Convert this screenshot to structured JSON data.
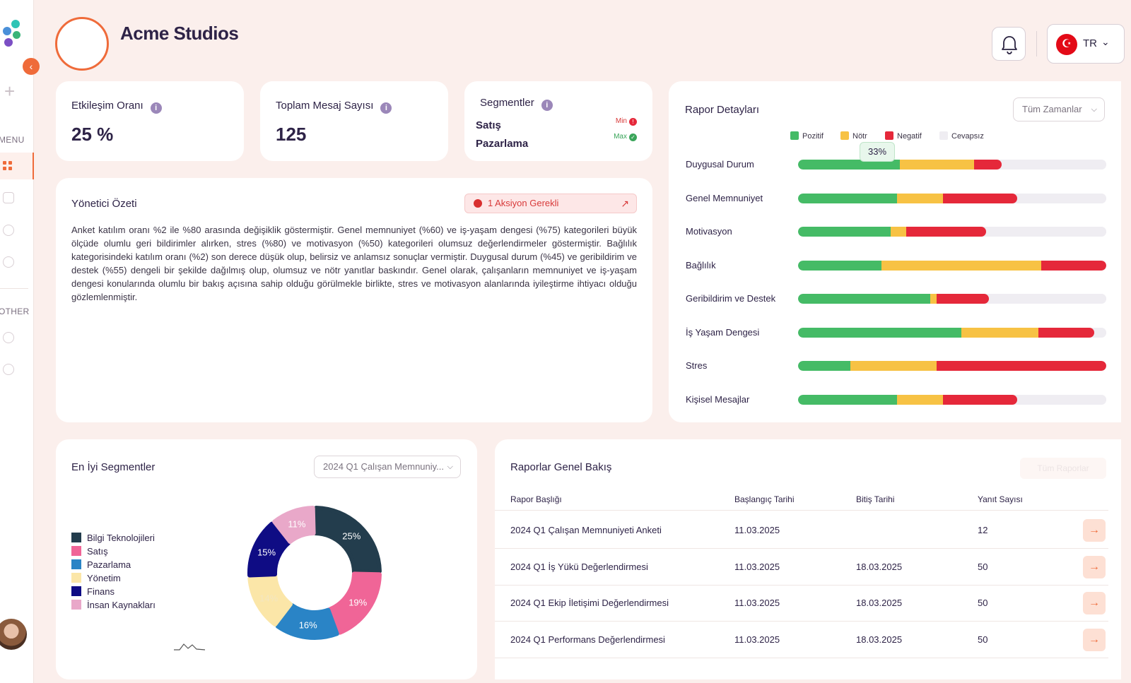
{
  "sidebar": {
    "menu_label": "MENU",
    "other_label": "OTHER"
  },
  "header": {
    "company_name": "Acme Studios",
    "language": "TR",
    "flag_symbol": "☪"
  },
  "kpis": {
    "engagement": {
      "title": "Etkileşim Oranı",
      "value": "25 %"
    },
    "messages": {
      "title": "Toplam Mesaj Sayısı",
      "value": "125"
    },
    "segments": {
      "title": "Segmentler",
      "min_label": "Min",
      "max_label": "Max",
      "min_segment": "Satış",
      "max_segment": "Pazarlama"
    }
  },
  "summary": {
    "title": "Yönetici Özeti",
    "action": "1 Aksiyon Gerekli",
    "text": "Anket katılım oranı %2 ile %80 arasında değişiklik göstermiştir. Genel memnuniyet (%60) ve iş-yaşam dengesi (%75) kategorileri büyük ölçüde olumlu geri bildirimler alırken, stres (%80) ve motivasyon (%50) kategorileri olumsuz değerlendirmeler göstermiştir. Bağlılık kategorisindeki katılım oranı (%2) son derece düşük olup, belirsiz ve anlamsız sonuçlar vermiştir. Duygusal durum (%45) ve geribildirim ve destek (%55) dengeli bir şekilde dağılmış olup, olumsuz ve nötr yanıtlar baskındır. Genel olarak, çalışanların memnuniyet ve iş-yaşam dengesi konularında olumlu bir bakış açısına sahip olduğu görülmekle birlikte, stres ve motivasyon alanlarında iyileştirme ihtiyacı olduğu gözlemlenmiştir."
  },
  "report_details": {
    "title": "Rapor Detayları",
    "filter": "Tüm Zamanlar",
    "legend": [
      "Pozitif",
      "Nötr",
      "Negatif",
      "Cevapsız"
    ],
    "colors": {
      "positive": "#45bb66",
      "neutral": "#f7c244",
      "negative": "#e5283a",
      "empty": "#efedf2"
    },
    "tooltip": "33%"
  },
  "chart_data": {
    "type": "bar",
    "stacked": true,
    "orientation": "horizontal",
    "categories": [
      "Duygusal Durum",
      "Genel Memnuniyet",
      "Motivasyon",
      "Bağlılık",
      "Geribildirim ve Destek",
      "İş Yaşam Dengesi",
      "Stres",
      "Kişisel Mesajlar"
    ],
    "series": [
      {
        "name": "Pozitif",
        "values": [
          33,
          32,
          30,
          27,
          43,
          53,
          17,
          32
        ]
      },
      {
        "name": "Nötr",
        "values": [
          24,
          15,
          5,
          52,
          2,
          25,
          28,
          15
        ]
      },
      {
        "name": "Negatif",
        "values": [
          9,
          24,
          26,
          21,
          17,
          18,
          55,
          24
        ]
      },
      {
        "name": "Cevapsız",
        "values": [
          34,
          29,
          39,
          0,
          38,
          4,
          0,
          29
        ]
      }
    ],
    "xlim": [
      0,
      100
    ]
  },
  "top_segments": {
    "title": "En İyi Segmentler",
    "filter": "2024 Q1 Çalışan Memnuniy...",
    "slices": [
      {
        "label": "Bilgi Teknolojileri",
        "value": 25,
        "text": "25%",
        "color": "#233d4d"
      },
      {
        "label": "Satış",
        "value": 19,
        "text": "19%",
        "color": "#f06597"
      },
      {
        "label": "Pazarlama",
        "value": 16,
        "text": "16%",
        "color": "#2a84c6"
      },
      {
        "label": "Yönetim",
        "value": 14,
        "text": "14%",
        "color": "#fbe6a8"
      },
      {
        "label": "Finans",
        "value": 15,
        "text": "15%",
        "color": "#0f0c84"
      },
      {
        "label": "İnsan Kaynakları",
        "value": 11,
        "text": "11%",
        "color": "#e9a8c9"
      }
    ]
  },
  "reports": {
    "title": "Raporlar Genel Bakış",
    "all_button": "Tüm Raporlar",
    "columns": [
      "Rapor Başlığı",
      "Başlangıç Tarihi",
      "Bitiş Tarihi",
      "Yanıt Sayısı"
    ],
    "rows": [
      {
        "title": "2024 Q1 Çalışan Memnuniyeti Anketi",
        "start": "11.03.2025",
        "end": "",
        "count": "12"
      },
      {
        "title": "2024 Q1 İş Yükü Değerlendirmesi",
        "start": "11.03.2025",
        "end": "18.03.2025",
        "count": "50"
      },
      {
        "title": "2024 Q1 Ekip İletişimi Değerlendirmesi",
        "start": "11.03.2025",
        "end": "18.03.2025",
        "count": "50"
      },
      {
        "title": "2024 Q1 Performans Değerlendirmesi",
        "start": "11.03.2025",
        "end": "18.03.2025",
        "count": "50"
      }
    ],
    "row_arrow": "→"
  }
}
